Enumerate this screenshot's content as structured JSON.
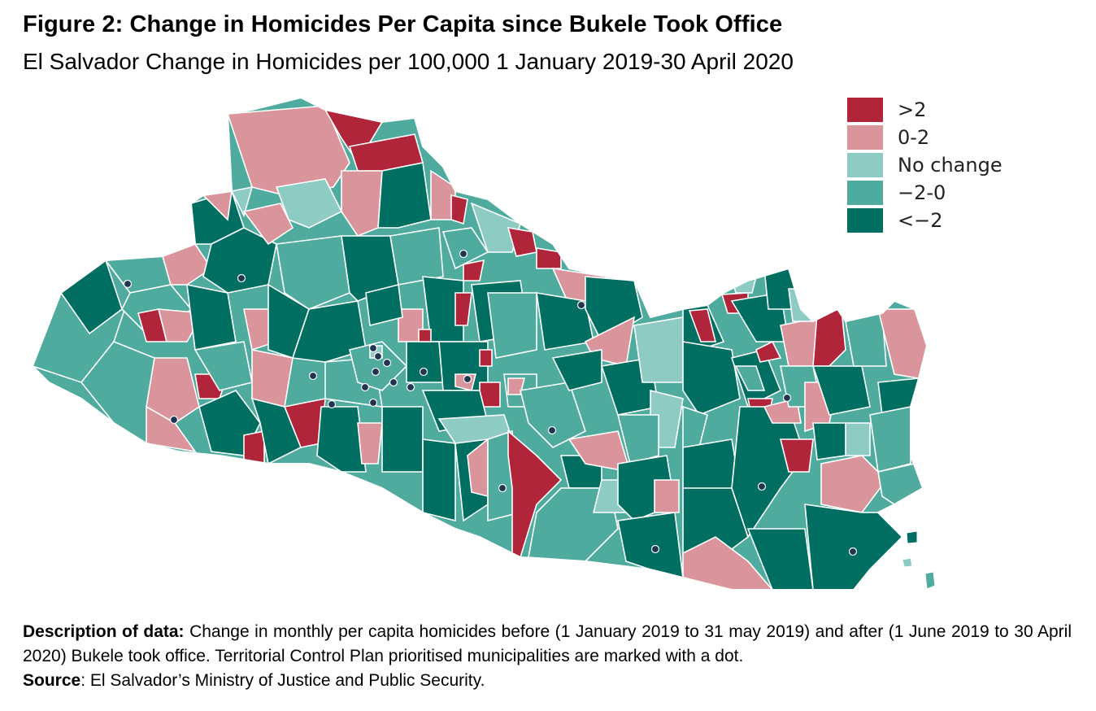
{
  "title": "Figure 2: Change in Homicides Per Capita since Bukele Took Office",
  "subtitle": "El Salvador Change in Homicides per 100,000 1 January 2019-30 April 2020",
  "legend": {
    "items": [
      {
        "label": ">2",
        "color": "#b0253a"
      },
      {
        "label": "0-2",
        "color": "#d9959b"
      },
      {
        "label": "No change",
        "color": "#8ecbc3"
      },
      {
        "label": "−2-0",
        "color": "#4fab9e"
      },
      {
        "label": "<−2",
        "color": "#006f62"
      }
    ]
  },
  "colors": {
    "border": "#ffffff",
    "dot": "#1f3550",
    "gt2": "#b0253a",
    "zero_two": "#d9959b",
    "no_change": "#8ecbc3",
    "minus_two_zero": "#4fab9e",
    "lt_minus2": "#006f62"
  },
  "caption": {
    "description_label": "Description of data:",
    "description_text": " Change in monthly per capita homicides before (1 January 2019 to 31 may 2019) and after (1 June 2019 to 30 April 2020) Bukele took office. Territorial Control Plan prioritised municipalities are marked with a dot.",
    "source_label": "Source",
    "source_text": ": El Salvador’s Ministry of Justice and Public Security."
  }
}
